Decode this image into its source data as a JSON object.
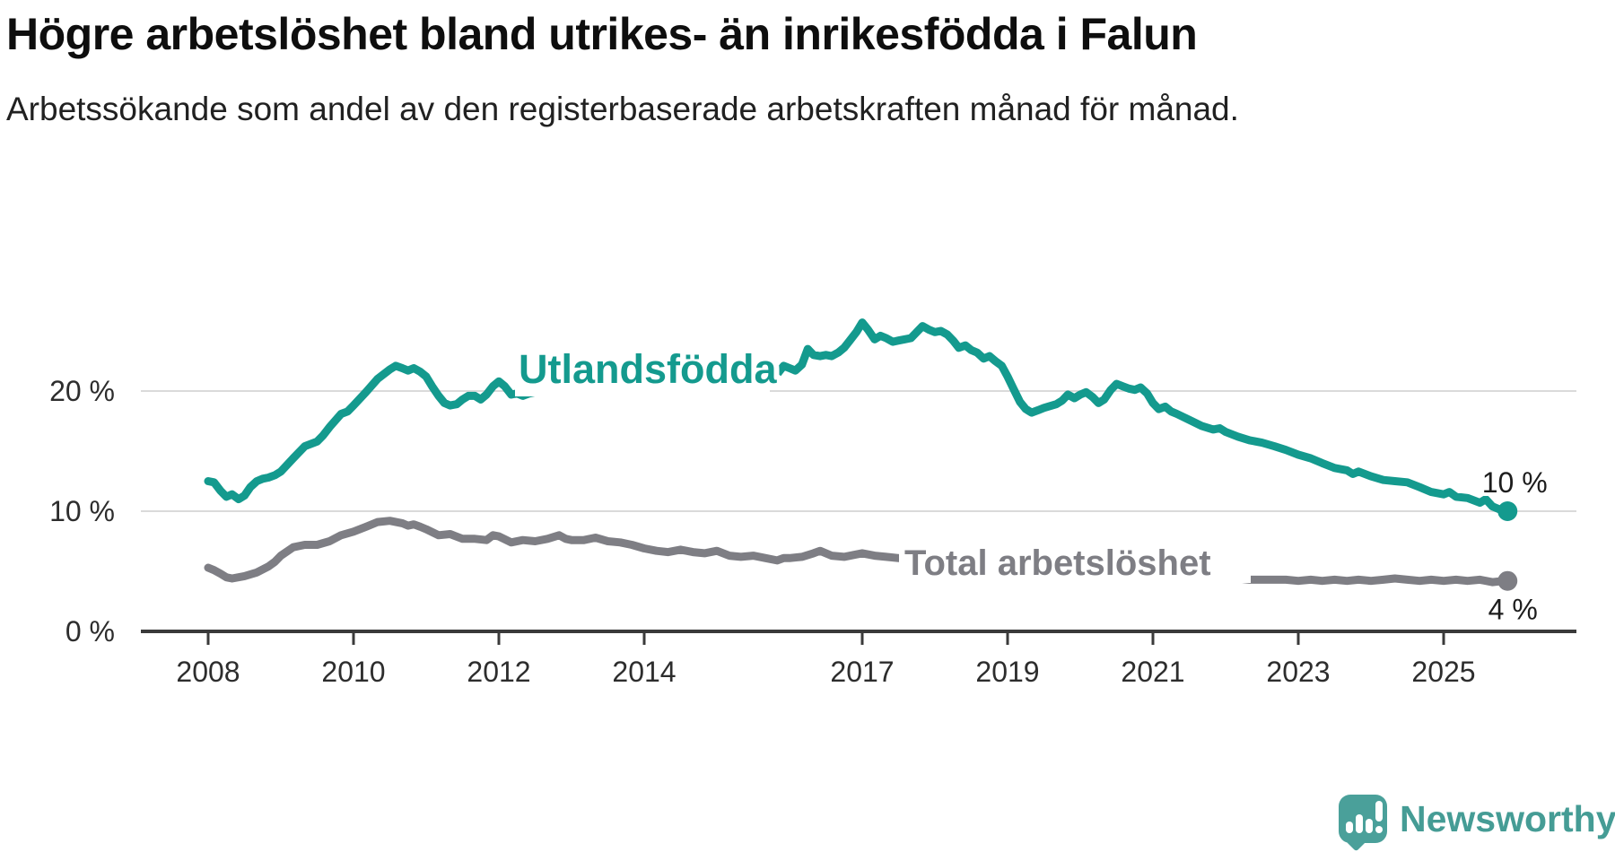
{
  "header": {
    "title": "Högre arbetslöshet bland utrikes- än inrikesfödda i Falun",
    "subtitle": "Arbetssökande som andel av den registerbaserade arbetskraften månad för månad."
  },
  "footer": {
    "brand": "Newsworthy",
    "logo_icon": "speech-bubble-bar-chart-exclamation"
  },
  "colors": {
    "series_foreign_born": "#149a8e",
    "series_total": "#7e7e84",
    "axis": "#3a3a3a",
    "tick_label": "#2d2d2d",
    "gridline": "#dadada",
    "logo_teal": "#4aa09a",
    "logo_text": "#459c95"
  },
  "chart_data": {
    "type": "line",
    "title": "Högre arbetslöshet bland utrikes- än inrikesfödda i Falun",
    "subtitle": "Arbetssökande som andel av den registerbaserade arbetskraften månad för månad.",
    "unit": "%",
    "grid": "horizontal-only",
    "legend_position": "inline-labels",
    "x_range": [
      2008.0,
      2025.92
    ],
    "ylim": [
      0,
      26
    ],
    "y_ticks": [
      {
        "value": 0,
        "label": "0 %"
      },
      {
        "value": 10,
        "label": "10 %"
      },
      {
        "value": 20,
        "label": "20 %"
      }
    ],
    "x_ticks": [
      2008,
      2010,
      2012,
      2014,
      2017,
      2019,
      2021,
      2023,
      2025
    ],
    "x_tick_labels": [
      "2008",
      "2010",
      "2012",
      "2014",
      "2017",
      "2019",
      "2021",
      "2023",
      "2025"
    ],
    "series": [
      {
        "name": "Utlandsfödda",
        "color": "#149a8e",
        "end_label": "10 %",
        "end_value": 10,
        "points": [
          [
            2008.0,
            12.5
          ],
          [
            2008.08,
            12.4
          ],
          [
            2008.17,
            11.7
          ],
          [
            2008.25,
            11.2
          ],
          [
            2008.33,
            11.4
          ],
          [
            2008.42,
            11.0
          ],
          [
            2008.5,
            11.3
          ],
          [
            2008.58,
            12.0
          ],
          [
            2008.67,
            12.5
          ],
          [
            2008.75,
            12.7
          ],
          [
            2008.83,
            12.8
          ],
          [
            2008.92,
            13.0
          ],
          [
            2009.0,
            13.3
          ],
          [
            2009.17,
            14.4
          ],
          [
            2009.33,
            15.4
          ],
          [
            2009.5,
            15.8
          ],
          [
            2009.58,
            16.3
          ],
          [
            2009.67,
            17.0
          ],
          [
            2009.83,
            18.1
          ],
          [
            2009.92,
            18.3
          ],
          [
            2010.0,
            18.8
          ],
          [
            2010.17,
            19.9
          ],
          [
            2010.33,
            21.0
          ],
          [
            2010.5,
            21.8
          ],
          [
            2010.58,
            22.1
          ],
          [
            2010.67,
            21.9
          ],
          [
            2010.75,
            21.7
          ],
          [
            2010.83,
            21.9
          ],
          [
            2010.92,
            21.6
          ],
          [
            2011.0,
            21.2
          ],
          [
            2011.08,
            20.4
          ],
          [
            2011.17,
            19.6
          ],
          [
            2011.25,
            19.0
          ],
          [
            2011.33,
            18.8
          ],
          [
            2011.42,
            18.9
          ],
          [
            2011.5,
            19.3
          ],
          [
            2011.58,
            19.6
          ],
          [
            2011.67,
            19.6
          ],
          [
            2011.75,
            19.3
          ],
          [
            2011.83,
            19.7
          ],
          [
            2011.92,
            20.4
          ],
          [
            2012.0,
            20.8
          ],
          [
            2012.08,
            20.4
          ],
          [
            2012.17,
            19.7
          ],
          [
            2012.25,
            19.8
          ],
          [
            2012.33,
            19.6
          ],
          [
            2012.42,
            19.8
          ],
          [
            2012.5,
            19.9
          ],
          [
            2012.58,
            20.3
          ],
          [
            2012.67,
            20.8
          ],
          [
            2012.75,
            21.0
          ],
          [
            2012.83,
            21.1
          ],
          [
            2012.92,
            20.8
          ],
          [
            2013.0,
            20.5
          ],
          [
            2013.17,
            20.7
          ],
          [
            2013.33,
            20.8
          ],
          [
            2013.5,
            20.6
          ],
          [
            2013.67,
            20.9
          ],
          [
            2013.83,
            21.0
          ],
          [
            2014.0,
            20.8
          ],
          [
            2014.17,
            20.6
          ],
          [
            2014.33,
            20.9
          ],
          [
            2014.5,
            20.7
          ],
          [
            2014.67,
            20.9
          ],
          [
            2014.83,
            21.0
          ],
          [
            2015.0,
            21.1
          ],
          [
            2015.17,
            21.2
          ],
          [
            2015.33,
            21.1
          ],
          [
            2015.5,
            21.4
          ],
          [
            2015.67,
            21.9
          ],
          [
            2015.75,
            22.3
          ],
          [
            2015.83,
            21.4
          ],
          [
            2015.92,
            22.1
          ],
          [
            2016.0,
            21.9
          ],
          [
            2016.08,
            21.7
          ],
          [
            2016.17,
            22.2
          ],
          [
            2016.25,
            23.5
          ],
          [
            2016.33,
            23.0
          ],
          [
            2016.42,
            22.9
          ],
          [
            2016.5,
            23.0
          ],
          [
            2016.58,
            22.9
          ],
          [
            2016.67,
            23.2
          ],
          [
            2016.75,
            23.6
          ],
          [
            2016.83,
            24.2
          ],
          [
            2016.92,
            24.9
          ],
          [
            2017.0,
            25.7
          ],
          [
            2017.08,
            25.1
          ],
          [
            2017.17,
            24.3
          ],
          [
            2017.25,
            24.6
          ],
          [
            2017.33,
            24.4
          ],
          [
            2017.42,
            24.1
          ],
          [
            2017.5,
            24.2
          ],
          [
            2017.58,
            24.3
          ],
          [
            2017.67,
            24.4
          ],
          [
            2017.75,
            24.9
          ],
          [
            2017.83,
            25.4
          ],
          [
            2017.92,
            25.1
          ],
          [
            2018.0,
            24.9
          ],
          [
            2018.08,
            25.0
          ],
          [
            2018.17,
            24.7
          ],
          [
            2018.25,
            24.2
          ],
          [
            2018.33,
            23.6
          ],
          [
            2018.42,
            23.8
          ],
          [
            2018.5,
            23.4
          ],
          [
            2018.58,
            23.2
          ],
          [
            2018.67,
            22.7
          ],
          [
            2018.75,
            22.9
          ],
          [
            2018.83,
            22.5
          ],
          [
            2018.92,
            22.1
          ],
          [
            2019.0,
            21.2
          ],
          [
            2019.08,
            20.2
          ],
          [
            2019.17,
            19.1
          ],
          [
            2019.25,
            18.5
          ],
          [
            2019.33,
            18.2
          ],
          [
            2019.42,
            18.4
          ],
          [
            2019.5,
            18.6
          ],
          [
            2019.67,
            18.9
          ],
          [
            2019.75,
            19.2
          ],
          [
            2019.83,
            19.7
          ],
          [
            2019.92,
            19.4
          ],
          [
            2020.0,
            19.7
          ],
          [
            2020.08,
            19.9
          ],
          [
            2020.17,
            19.5
          ],
          [
            2020.25,
            19.0
          ],
          [
            2020.33,
            19.3
          ],
          [
            2020.42,
            20.1
          ],
          [
            2020.5,
            20.6
          ],
          [
            2020.58,
            20.4
          ],
          [
            2020.67,
            20.2
          ],
          [
            2020.75,
            20.1
          ],
          [
            2020.83,
            20.3
          ],
          [
            2020.92,
            19.8
          ],
          [
            2021.0,
            19.0
          ],
          [
            2021.08,
            18.5
          ],
          [
            2021.17,
            18.7
          ],
          [
            2021.25,
            18.3
          ],
          [
            2021.33,
            18.1
          ],
          [
            2021.5,
            17.6
          ],
          [
            2021.67,
            17.1
          ],
          [
            2021.83,
            16.8
          ],
          [
            2021.92,
            16.9
          ],
          [
            2022.0,
            16.6
          ],
          [
            2022.17,
            16.2
          ],
          [
            2022.33,
            15.9
          ],
          [
            2022.5,
            15.7
          ],
          [
            2022.67,
            15.4
          ],
          [
            2022.83,
            15.1
          ],
          [
            2023.0,
            14.7
          ],
          [
            2023.17,
            14.4
          ],
          [
            2023.33,
            14.0
          ],
          [
            2023.5,
            13.6
          ],
          [
            2023.67,
            13.4
          ],
          [
            2023.75,
            13.1
          ],
          [
            2023.83,
            13.3
          ],
          [
            2024.0,
            12.9
          ],
          [
            2024.17,
            12.6
          ],
          [
            2024.33,
            12.5
          ],
          [
            2024.5,
            12.4
          ],
          [
            2024.67,
            12.0
          ],
          [
            2024.83,
            11.6
          ],
          [
            2025.0,
            11.4
          ],
          [
            2025.08,
            11.6
          ],
          [
            2025.17,
            11.2
          ],
          [
            2025.33,
            11.1
          ],
          [
            2025.5,
            10.7
          ],
          [
            2025.58,
            11.0
          ],
          [
            2025.67,
            10.4
          ],
          [
            2025.83,
            10.0
          ]
        ]
      },
      {
        "name": "Total arbetslöshet",
        "color": "#7e7e84",
        "end_label": "4 %",
        "end_value": 4,
        "points": [
          [
            2008.0,
            5.3
          ],
          [
            2008.08,
            5.1
          ],
          [
            2008.17,
            4.8
          ],
          [
            2008.25,
            4.5
          ],
          [
            2008.33,
            4.4
          ],
          [
            2008.5,
            4.6
          ],
          [
            2008.67,
            4.9
          ],
          [
            2008.83,
            5.4
          ],
          [
            2008.92,
            5.8
          ],
          [
            2009.0,
            6.3
          ],
          [
            2009.17,
            7.0
          ],
          [
            2009.33,
            7.2
          ],
          [
            2009.5,
            7.2
          ],
          [
            2009.67,
            7.5
          ],
          [
            2009.83,
            8.0
          ],
          [
            2010.0,
            8.3
          ],
          [
            2010.17,
            8.7
          ],
          [
            2010.33,
            9.1
          ],
          [
            2010.5,
            9.2
          ],
          [
            2010.67,
            9.0
          ],
          [
            2010.75,
            8.8
          ],
          [
            2010.83,
            8.9
          ],
          [
            2010.92,
            8.7
          ],
          [
            2011.0,
            8.5
          ],
          [
            2011.17,
            8.0
          ],
          [
            2011.33,
            8.1
          ],
          [
            2011.5,
            7.7
          ],
          [
            2011.67,
            7.7
          ],
          [
            2011.83,
            7.6
          ],
          [
            2011.92,
            8.0
          ],
          [
            2012.0,
            7.9
          ],
          [
            2012.17,
            7.4
          ],
          [
            2012.33,
            7.6
          ],
          [
            2012.5,
            7.5
          ],
          [
            2012.67,
            7.7
          ],
          [
            2012.83,
            8.0
          ],
          [
            2012.92,
            7.7
          ],
          [
            2013.0,
            7.6
          ],
          [
            2013.17,
            7.6
          ],
          [
            2013.33,
            7.8
          ],
          [
            2013.5,
            7.5
          ],
          [
            2013.67,
            7.4
          ],
          [
            2013.83,
            7.2
          ],
          [
            2014.0,
            6.9
          ],
          [
            2014.17,
            6.7
          ],
          [
            2014.33,
            6.6
          ],
          [
            2014.5,
            6.8
          ],
          [
            2014.67,
            6.6
          ],
          [
            2014.83,
            6.5
          ],
          [
            2015.0,
            6.7
          ],
          [
            2015.17,
            6.3
          ],
          [
            2015.33,
            6.2
          ],
          [
            2015.5,
            6.3
          ],
          [
            2015.67,
            6.1
          ],
          [
            2015.83,
            5.9
          ],
          [
            2015.92,
            6.1
          ],
          [
            2016.0,
            6.1
          ],
          [
            2016.17,
            6.2
          ],
          [
            2016.33,
            6.5
          ],
          [
            2016.42,
            6.7
          ],
          [
            2016.58,
            6.3
          ],
          [
            2016.75,
            6.2
          ],
          [
            2016.92,
            6.4
          ],
          [
            2017.0,
            6.5
          ],
          [
            2017.17,
            6.3
          ],
          [
            2017.33,
            6.2
          ],
          [
            2017.5,
            6.1
          ],
          [
            2017.67,
            6.2
          ],
          [
            2017.83,
            5.9
          ],
          [
            2018.0,
            5.8
          ],
          [
            2018.33,
            5.6
          ],
          [
            2018.67,
            5.5
          ],
          [
            2019.0,
            5.2
          ],
          [
            2019.33,
            5.1
          ],
          [
            2019.67,
            5.2
          ],
          [
            2020.0,
            5.4
          ],
          [
            2020.33,
            5.8
          ],
          [
            2020.5,
            5.9
          ],
          [
            2020.83,
            5.7
          ],
          [
            2021.0,
            5.5
          ],
          [
            2021.33,
            5.1
          ],
          [
            2021.67,
            4.8
          ],
          [
            2022.0,
            4.6
          ],
          [
            2022.17,
            4.4
          ],
          [
            2022.33,
            4.3
          ],
          [
            2022.5,
            4.3
          ],
          [
            2022.67,
            4.3
          ],
          [
            2022.83,
            4.3
          ],
          [
            2023.0,
            4.2
          ],
          [
            2023.17,
            4.3
          ],
          [
            2023.33,
            4.2
          ],
          [
            2023.5,
            4.3
          ],
          [
            2023.67,
            4.2
          ],
          [
            2023.83,
            4.3
          ],
          [
            2024.0,
            4.2
          ],
          [
            2024.17,
            4.3
          ],
          [
            2024.33,
            4.4
          ],
          [
            2024.5,
            4.3
          ],
          [
            2024.67,
            4.2
          ],
          [
            2024.83,
            4.3
          ],
          [
            2025.0,
            4.2
          ],
          [
            2025.17,
            4.3
          ],
          [
            2025.33,
            4.2
          ],
          [
            2025.5,
            4.3
          ],
          [
            2025.67,
            4.1
          ],
          [
            2025.83,
            4.2
          ]
        ]
      }
    ]
  }
}
